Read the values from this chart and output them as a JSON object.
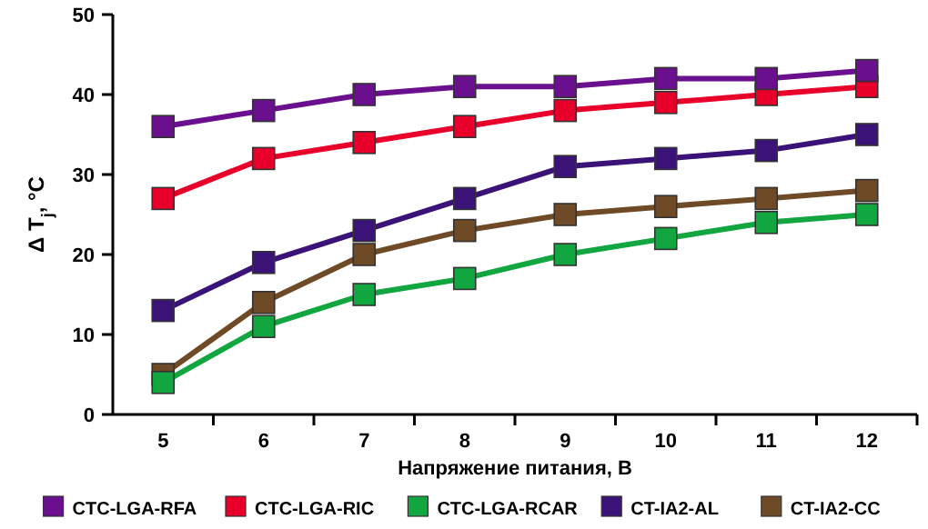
{
  "chart_data": {
    "type": "line",
    "xlabel": "Напряжение питания, В",
    "ylabel": "Δ T$_{j}$, °C",
    "categories": [
      "5",
      "6",
      "7",
      "8",
      "9",
      "10",
      "11",
      "12"
    ],
    "ylim": [
      0,
      50
    ],
    "yticks": [
      0,
      10,
      20,
      30,
      40,
      50
    ],
    "marker": "square",
    "legend": "bottom",
    "grid": false,
    "series": [
      {
        "name": "CTC-LGA-RFA",
        "color": "#6a0f8e",
        "values": [
          36,
          38,
          40,
          41,
          41,
          42,
          42,
          43
        ]
      },
      {
        "name": "CTC-LGA-RIC",
        "color": "#e8002a",
        "values": [
          27,
          32,
          34,
          36,
          38,
          39,
          40,
          41
        ]
      },
      {
        "name": "CTC-LGA-RCAR",
        "color": "#12a640",
        "values": [
          4,
          11,
          15,
          17,
          20,
          22,
          24,
          25
        ]
      },
      {
        "name": "CT-IA2-AL",
        "color": "#3b1278",
        "values": [
          13,
          19,
          23,
          27,
          31,
          32,
          33,
          35
        ]
      },
      {
        "name": "CT-IA2-CC",
        "color": "#6e4a26",
        "values": [
          5,
          14,
          20,
          23,
          25,
          26,
          27,
          28
        ]
      }
    ]
  }
}
